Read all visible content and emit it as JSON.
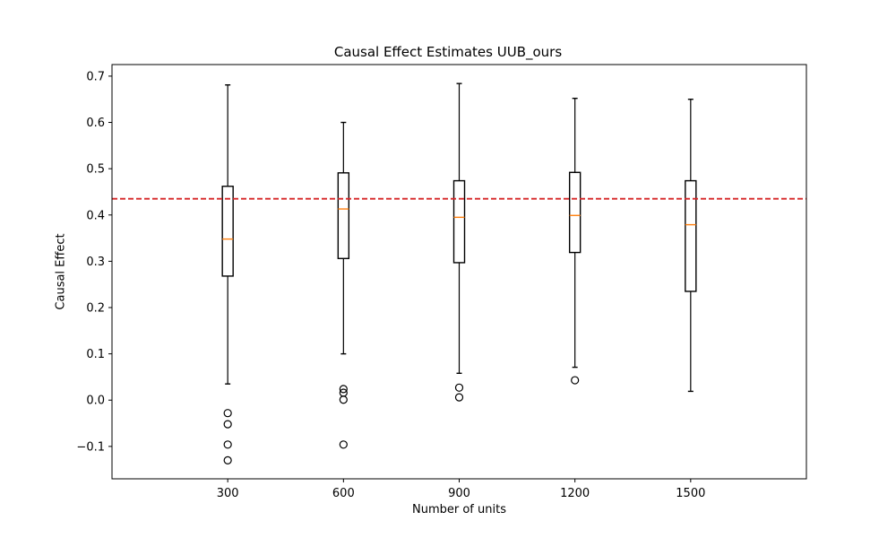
{
  "chart_data": {
    "type": "box",
    "title": "Causal Effect Estimates UUB_ours",
    "xlabel": "Number of units",
    "ylabel": "Causal Effect",
    "categories": [
      "300",
      "600",
      "900",
      "1200",
      "1500"
    ],
    "ylim": [
      -0.17,
      0.725
    ],
    "yticks": [
      -0.1,
      0.0,
      0.1,
      0.2,
      0.3,
      0.4,
      0.5,
      0.6,
      0.7
    ],
    "ytick_labels": [
      "−0.1",
      "0.0",
      "0.1",
      "0.2",
      "0.3",
      "0.4",
      "0.5",
      "0.6",
      "0.7"
    ],
    "boxes": [
      {
        "category": "300",
        "whisker_low": 0.035,
        "q1": 0.268,
        "median": 0.348,
        "q3": 0.462,
        "whisker_high": 0.681,
        "outliers": [
          -0.028,
          -0.052,
          -0.096,
          -0.13
        ]
      },
      {
        "category": "600",
        "whisker_low": 0.1,
        "q1": 0.306,
        "median": 0.413,
        "q3": 0.491,
        "whisker_high": 0.6,
        "outliers": [
          0.024,
          0.016,
          0.001,
          -0.096
        ]
      },
      {
        "category": "900",
        "whisker_low": 0.058,
        "q1": 0.297,
        "median": 0.395,
        "q3": 0.474,
        "whisker_high": 0.684,
        "outliers": [
          0.027,
          0.006
        ]
      },
      {
        "category": "1200",
        "whisker_low": 0.071,
        "q1": 0.319,
        "median": 0.399,
        "q3": 0.492,
        "whisker_high": 0.652,
        "outliers": [
          0.043
        ]
      },
      {
        "category": "1500",
        "whisker_low": 0.019,
        "q1": 0.235,
        "median": 0.379,
        "q3": 0.474,
        "whisker_high": 0.65,
        "outliers": []
      }
    ],
    "reference_line": {
      "value": 0.435,
      "style": "dashed",
      "color": "#d62728"
    },
    "colors": {
      "box": "#000000",
      "median": "#ff7f0e",
      "reference": "#d62728"
    },
    "grid": false,
    "legend": "none"
  }
}
